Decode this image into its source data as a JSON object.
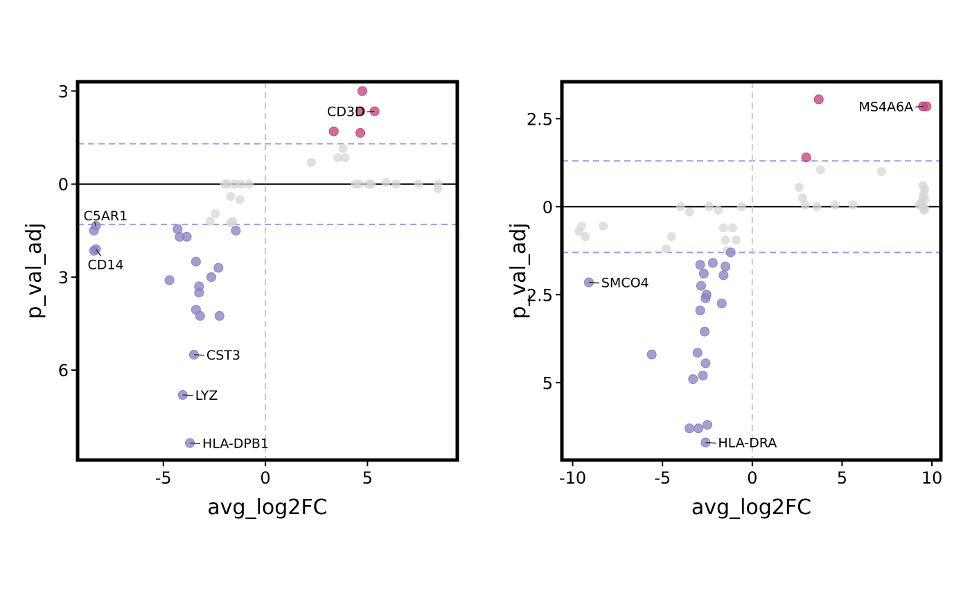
{
  "colors": {
    "up": "#c2477c",
    "down": "#8e82c2",
    "ns": "#d6d6d6",
    "threshold_line": "#9999ee",
    "zero_line": "#000000",
    "vertical_line": "#c8c8c8"
  },
  "chart_data": [
    {
      "type": "scatter",
      "xlabel": "avg_log2FC",
      "ylabel": "p_val_adj",
      "xlim": [
        -9.2,
        9.4
      ],
      "ylim": [
        -3.3,
        8.9
      ],
      "y_reversed": true,
      "xticks": [
        {
          "value": -5,
          "label": "-5"
        },
        {
          "value": 0,
          "label": "0"
        },
        {
          "value": 5,
          "label": "5"
        }
      ],
      "yticks": [
        {
          "value": -3,
          "label": "3"
        },
        {
          "value": 0,
          "label": "0"
        },
        {
          "value": 3,
          "label": "3"
        },
        {
          "value": 6,
          "label": "6"
        }
      ],
      "hlines": [
        {
          "y": -1.3,
          "style": "threshold"
        },
        {
          "y": 1.3,
          "style": "threshold"
        },
        {
          "y": 0,
          "style": "zero"
        }
      ],
      "vline": 0,
      "points": [
        {
          "x": 4.75,
          "y": -3.0,
          "group": "up"
        },
        {
          "x": 5.35,
          "y": -2.35,
          "group": "up"
        },
        {
          "x": 4.65,
          "y": -2.35,
          "group": "up"
        },
        {
          "x": 3.35,
          "y": -1.7,
          "group": "up"
        },
        {
          "x": 4.65,
          "y": -1.65,
          "group": "up"
        },
        {
          "x": 2.25,
          "y": -0.7,
          "group": "ns"
        },
        {
          "x": 3.55,
          "y": -0.85,
          "group": "ns"
        },
        {
          "x": 3.8,
          "y": -1.15,
          "group": "ns"
        },
        {
          "x": 3.9,
          "y": -0.85,
          "group": "ns"
        },
        {
          "x": 4.4,
          "y": 0.0,
          "group": "ns"
        },
        {
          "x": 4.6,
          "y": 0.0,
          "group": "ns"
        },
        {
          "x": 5.05,
          "y": 0.0,
          "group": "ns"
        },
        {
          "x": 5.2,
          "y": 0.0,
          "group": "ns"
        },
        {
          "x": 5.9,
          "y": -0.05,
          "group": "ns"
        },
        {
          "x": 6.4,
          "y": 0.0,
          "group": "ns"
        },
        {
          "x": 7.5,
          "y": 0.0,
          "group": "ns"
        },
        {
          "x": 8.45,
          "y": 0.0,
          "group": "ns"
        },
        {
          "x": 8.45,
          "y": 0.15,
          "group": "ns"
        },
        {
          "x": -2.0,
          "y": 0.0,
          "group": "ns"
        },
        {
          "x": -1.85,
          "y": 0.0,
          "group": "ns"
        },
        {
          "x": -1.5,
          "y": 0.0,
          "group": "ns"
        },
        {
          "x": -1.2,
          "y": 0.0,
          "group": "ns"
        },
        {
          "x": -0.8,
          "y": 0.0,
          "group": "ns"
        },
        {
          "x": -1.7,
          "y": 0.4,
          "group": "ns"
        },
        {
          "x": -1.25,
          "y": 0.5,
          "group": "ns"
        },
        {
          "x": -2.45,
          "y": 0.95,
          "group": "ns"
        },
        {
          "x": -2.7,
          "y": 1.2,
          "group": "ns"
        },
        {
          "x": -1.6,
          "y": 1.2,
          "group": "ns"
        },
        {
          "x": -1.7,
          "y": 1.25,
          "group": "ns"
        },
        {
          "x": -1.45,
          "y": 1.5,
          "group": "down"
        },
        {
          "x": -8.3,
          "y": 1.35,
          "group": "down"
        },
        {
          "x": -8.4,
          "y": 1.5,
          "group": "down"
        },
        {
          "x": -8.3,
          "y": 2.1,
          "group": "down"
        },
        {
          "x": -8.4,
          "y": 2.15,
          "group": "down"
        },
        {
          "x": -4.3,
          "y": 1.45,
          "group": "down"
        },
        {
          "x": -4.2,
          "y": 1.7,
          "group": "down"
        },
        {
          "x": -3.85,
          "y": 1.7,
          "group": "down"
        },
        {
          "x": -3.4,
          "y": 2.5,
          "group": "down"
        },
        {
          "x": -2.3,
          "y": 2.7,
          "group": "down"
        },
        {
          "x": -4.7,
          "y": 3.1,
          "group": "down"
        },
        {
          "x": -2.65,
          "y": 3.0,
          "group": "down"
        },
        {
          "x": -3.25,
          "y": 3.3,
          "group": "down"
        },
        {
          "x": -3.25,
          "y": 3.5,
          "group": "down"
        },
        {
          "x": -3.4,
          "y": 4.05,
          "group": "down"
        },
        {
          "x": -3.2,
          "y": 4.25,
          "group": "down"
        },
        {
          "x": -2.25,
          "y": 4.25,
          "group": "down"
        },
        {
          "x": -3.5,
          "y": 5.5,
          "group": "down"
        },
        {
          "x": -4.05,
          "y": 6.8,
          "group": "down"
        },
        {
          "x": -3.7,
          "y": 8.35,
          "group": "down"
        }
      ],
      "labels": [
        {
          "text": "CD3D",
          "x": 5.35,
          "y": -2.35,
          "pos": "left"
        },
        {
          "text": "C5AR1",
          "x": -8.3,
          "y": 1.35,
          "pos": "above"
        },
        {
          "text": "CD14",
          "x": -8.3,
          "y": 2.1,
          "pos": "below"
        },
        {
          "text": "CST3",
          "x": -3.5,
          "y": 5.5,
          "pos": "right"
        },
        {
          "text": "LYZ",
          "x": -4.05,
          "y": 6.8,
          "pos": "right"
        },
        {
          "text": "HLA-DPB1",
          "x": -3.7,
          "y": 8.35,
          "pos": "right"
        }
      ]
    },
    {
      "type": "scatter",
      "xlabel": "avg_log2FC",
      "ylabel": "p_val_adj",
      "xlim": [
        -10.6,
        10.5
      ],
      "ylim": [
        -3.55,
        7.2
      ],
      "y_reversed": true,
      "xticks": [
        {
          "value": -10,
          "label": "-10"
        },
        {
          "value": -5,
          "label": "-5"
        },
        {
          "value": 0,
          "label": "0"
        },
        {
          "value": 5,
          "label": "5"
        },
        {
          "value": 10,
          "label": "10"
        }
      ],
      "yticks": [
        {
          "value": -2.5,
          "label": "2.5"
        },
        {
          "value": 0,
          "label": "0"
        },
        {
          "value": 2.5,
          "label": "2.5"
        },
        {
          "value": 5,
          "label": "5"
        }
      ],
      "hlines": [
        {
          "y": -1.3,
          "style": "threshold"
        },
        {
          "y": 1.3,
          "style": "threshold"
        },
        {
          "y": 0,
          "style": "zero"
        }
      ],
      "vline": 0,
      "points": [
        {
          "x": 3.7,
          "y": -3.05,
          "group": "up"
        },
        {
          "x": 9.5,
          "y": -2.85,
          "group": "up"
        },
        {
          "x": 9.7,
          "y": -2.85,
          "group": "up"
        },
        {
          "x": 3.0,
          "y": -1.4,
          "group": "up"
        },
        {
          "x": 3.8,
          "y": -1.05,
          "group": "ns"
        },
        {
          "x": 7.2,
          "y": -1.0,
          "group": "ns"
        },
        {
          "x": 2.6,
          "y": -0.55,
          "group": "ns"
        },
        {
          "x": 2.8,
          "y": -0.25,
          "group": "ns"
        },
        {
          "x": 2.95,
          "y": -0.05,
          "group": "ns"
        },
        {
          "x": 3.6,
          "y": 0.0,
          "group": "ns"
        },
        {
          "x": 4.6,
          "y": -0.05,
          "group": "ns"
        },
        {
          "x": 5.6,
          "y": -0.05,
          "group": "ns"
        },
        {
          "x": 9.5,
          "y": -0.6,
          "group": "ns"
        },
        {
          "x": 9.6,
          "y": -0.5,
          "group": "ns"
        },
        {
          "x": 9.55,
          "y": -0.35,
          "group": "ns"
        },
        {
          "x": 9.5,
          "y": -0.25,
          "group": "ns"
        },
        {
          "x": 9.6,
          "y": -0.2,
          "group": "ns"
        },
        {
          "x": 9.4,
          "y": -0.1,
          "group": "ns"
        },
        {
          "x": 9.3,
          "y": -0.05,
          "group": "ns"
        },
        {
          "x": 9.5,
          "y": 0.0,
          "group": "ns"
        },
        {
          "x": 9.6,
          "y": 0.05,
          "group": "ns"
        },
        {
          "x": 9.55,
          "y": 0.1,
          "group": "ns"
        },
        {
          "x": -4.0,
          "y": 0.0,
          "group": "ns"
        },
        {
          "x": -3.5,
          "y": 0.15,
          "group": "ns"
        },
        {
          "x": -2.4,
          "y": 0.0,
          "group": "ns"
        },
        {
          "x": -1.9,
          "y": 0.1,
          "group": "ns"
        },
        {
          "x": -0.6,
          "y": 0.0,
          "group": "ns"
        },
        {
          "x": -9.5,
          "y": 0.55,
          "group": "ns"
        },
        {
          "x": -9.65,
          "y": 0.7,
          "group": "ns"
        },
        {
          "x": -9.3,
          "y": 0.85,
          "group": "ns"
        },
        {
          "x": -8.3,
          "y": 0.55,
          "group": "ns"
        },
        {
          "x": -4.5,
          "y": 0.85,
          "group": "ns"
        },
        {
          "x": -4.8,
          "y": 1.2,
          "group": "ns"
        },
        {
          "x": -1.6,
          "y": 0.6,
          "group": "ns"
        },
        {
          "x": -1.1,
          "y": 0.6,
          "group": "ns"
        },
        {
          "x": -1.5,
          "y": 0.95,
          "group": "ns"
        },
        {
          "x": -0.9,
          "y": 0.95,
          "group": "ns"
        },
        {
          "x": -1.4,
          "y": 1.25,
          "group": "ns"
        },
        {
          "x": -1.2,
          "y": 1.3,
          "group": "down"
        },
        {
          "x": -9.1,
          "y": 2.15,
          "group": "down"
        },
        {
          "x": -2.9,
          "y": 1.65,
          "group": "down"
        },
        {
          "x": -2.2,
          "y": 1.6,
          "group": "down"
        },
        {
          "x": -1.5,
          "y": 1.7,
          "group": "down"
        },
        {
          "x": -2.7,
          "y": 1.9,
          "group": "down"
        },
        {
          "x": -1.6,
          "y": 1.95,
          "group": "down"
        },
        {
          "x": -2.85,
          "y": 2.25,
          "group": "down"
        },
        {
          "x": -2.55,
          "y": 2.5,
          "group": "down"
        },
        {
          "x": -2.6,
          "y": 2.6,
          "group": "down"
        },
        {
          "x": -1.7,
          "y": 2.75,
          "group": "down"
        },
        {
          "x": -2.9,
          "y": 2.95,
          "group": "down"
        },
        {
          "x": -2.65,
          "y": 3.55,
          "group": "down"
        },
        {
          "x": -5.6,
          "y": 4.2,
          "group": "down"
        },
        {
          "x": -3.05,
          "y": 4.15,
          "group": "down"
        },
        {
          "x": -2.6,
          "y": 4.45,
          "group": "down"
        },
        {
          "x": -2.75,
          "y": 4.8,
          "group": "down"
        },
        {
          "x": -3.3,
          "y": 4.9,
          "group": "down"
        },
        {
          "x": -3.5,
          "y": 6.3,
          "group": "down"
        },
        {
          "x": -3.0,
          "y": 6.3,
          "group": "down"
        },
        {
          "x": -2.5,
          "y": 6.2,
          "group": "down"
        },
        {
          "x": -2.6,
          "y": 6.7,
          "group": "down"
        }
      ],
      "labels": [
        {
          "text": "MS4A6A",
          "x": 9.5,
          "y": -2.85,
          "pos": "left"
        },
        {
          "text": "SMCO4",
          "x": -9.1,
          "y": 2.15,
          "pos": "right"
        },
        {
          "text": "HLA-DRA",
          "x": -2.6,
          "y": 6.7,
          "pos": "right"
        }
      ]
    }
  ]
}
